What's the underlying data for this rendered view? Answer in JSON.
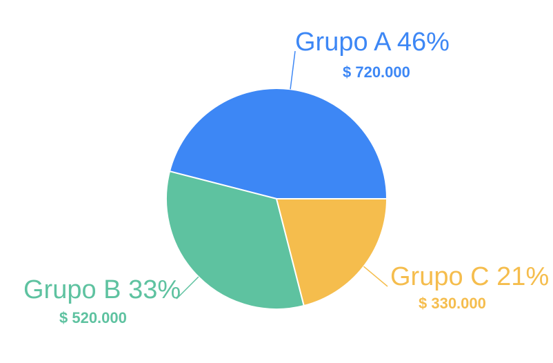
{
  "chart_data": {
    "type": "pie",
    "title": "",
    "slices": [
      {
        "label": "Grupo A 46%",
        "name": "Grupo A",
        "percent": 46,
        "value": 720000,
        "value_label": "$ 720.000",
        "color": "#3d87f5"
      },
      {
        "label": "Grupo B 33%",
        "name": "Grupo B",
        "percent": 33,
        "value": 520000,
        "value_label": "$ 520.000",
        "color": "#5ec2a0"
      },
      {
        "label": "Grupo C 21%",
        "name": "Grupo C",
        "percent": 21,
        "value": 330000,
        "value_label": "$ 330.000",
        "color": "#f5bd4d"
      }
    ],
    "start_angle_deg": 0,
    "direction": "counterclockwise"
  }
}
